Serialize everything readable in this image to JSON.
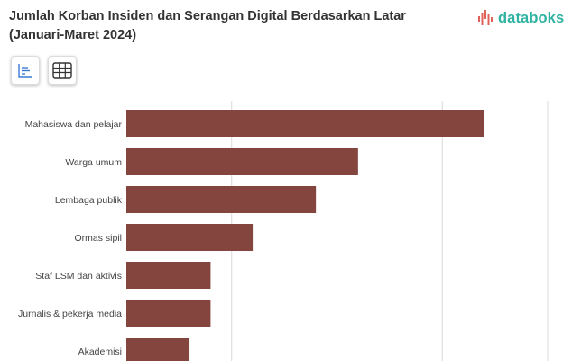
{
  "header": {
    "title": "Jumlah Korban Insiden dan Serangan Digital Berdasarkan Latar (Januari-Maret 2024)",
    "logo_text": "databoks"
  },
  "toolbar": {
    "chart_view_icon": "bar-chart-icon",
    "table_view_icon": "table-grid-icon"
  },
  "colors": {
    "bar": "#83453d",
    "grid": "#d8d8d8",
    "brand": "#2fb3a2"
  },
  "chart_data": {
    "type": "bar",
    "orientation": "horizontal",
    "title": "Jumlah Korban Insiden dan Serangan Digital Berdasarkan Latar (Januari-Maret 2024)",
    "xlabel": "",
    "ylabel": "",
    "categories": [
      "Mahasiswa dan pelajar",
      "Warga umum",
      "Lembaga publik",
      "Ormas sipil",
      "Staf LSM dan aktivis",
      "Jurnalis & pekerja media",
      "Akademisi"
    ],
    "values": [
      17,
      11,
      9,
      6,
      4,
      4,
      3
    ],
    "xlim": [
      0,
      20
    ],
    "grid": true,
    "gridlines_at": [
      5,
      10,
      15,
      20
    ],
    "legend": "none"
  }
}
